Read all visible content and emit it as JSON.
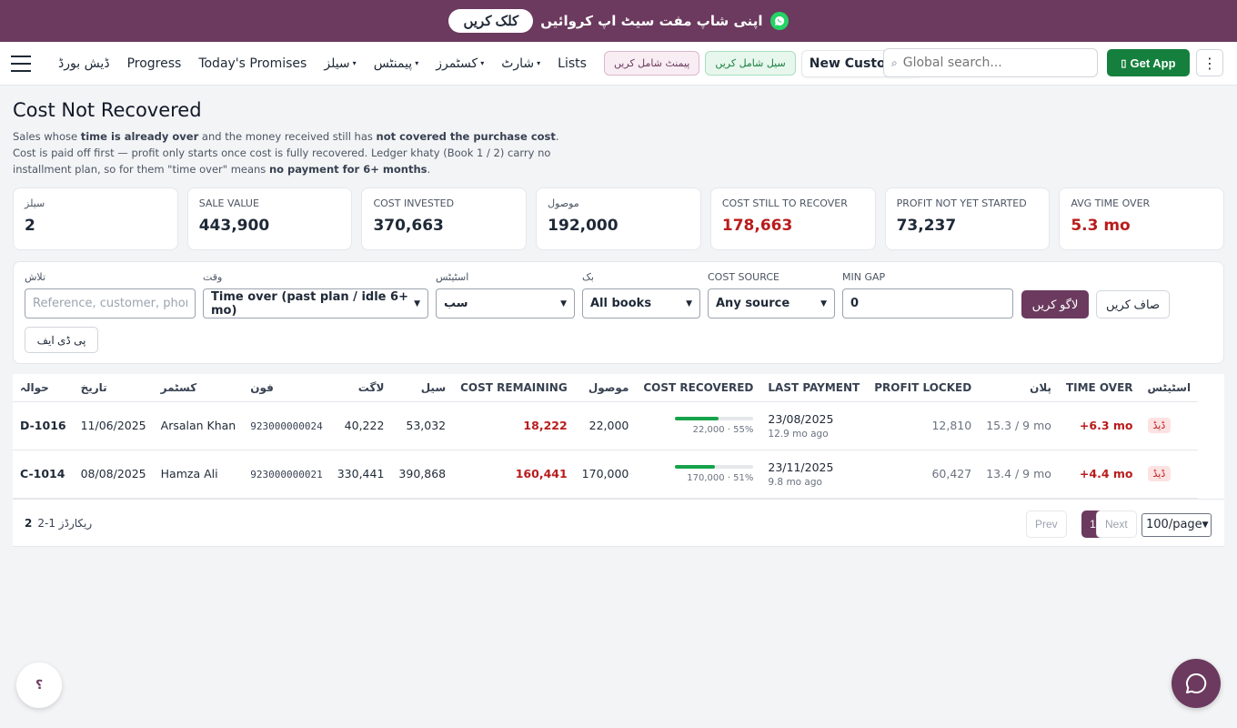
{
  "banner": {
    "message": "اپنی شاپ مفت سیٹ اپ کروائیں",
    "cta": "کلک کریں",
    "icon": "whatsapp-icon"
  },
  "nav": {
    "links": [
      {
        "label": "ڈیش بورڈ",
        "caret": false
      },
      {
        "label": "Progress",
        "caret": false
      },
      {
        "label": "Today's Promises",
        "caret": false
      },
      {
        "label": "سیلز",
        "caret": true
      },
      {
        "label": "پیمنٹس",
        "caret": true
      },
      {
        "label": "کسٹمرز",
        "caret": true
      },
      {
        "label": "شارٹ",
        "caret": true
      },
      {
        "label": "Lists",
        "caret": false
      }
    ],
    "add_payment": "پیمنٹ شامل کریں",
    "add_sale": "سیل شامل کریں",
    "new_customer": "New Customer",
    "search_placeholder": "Global search...",
    "get_app": "Get App"
  },
  "page": {
    "title": "Cost Not Recovered",
    "desc": [
      {
        "t": "Sales whose ",
        "b": false
      },
      {
        "t": "time is already over",
        "b": true
      },
      {
        "t": " and the money received still has ",
        "b": false
      },
      {
        "t": "not covered the purchase cost",
        "b": true
      },
      {
        "t": ". Cost is paid off first — profit only starts once cost is fully recovered. Ledger khaty (Book 1 / 2) carry no installment plan, so for them \"time over\" means ",
        "b": false
      },
      {
        "t": "no payment for 6+ months",
        "b": true
      },
      {
        "t": ".",
        "b": false
      }
    ]
  },
  "cards": [
    {
      "label": "سیلز",
      "value": "2",
      "red": false
    },
    {
      "label": "SALE VALUE",
      "value": "443,900",
      "red": false
    },
    {
      "label": "COST INVESTED",
      "value": "370,663",
      "red": false
    },
    {
      "label": "موصول",
      "value": "192,000",
      "red": false
    },
    {
      "label": "COST STILL TO RECOVER",
      "value": "178,663",
      "red": true
    },
    {
      "label": "PROFIT NOT YET STARTED",
      "value": "73,237",
      "red": false
    },
    {
      "label": "AVG TIME OVER",
      "value": "5.3 mo",
      "red": true
    }
  ],
  "filters": {
    "search_label": "تلاش",
    "search_placeholder": "Reference, customer, phone",
    "time_label": "وقت",
    "time_value": "Time over (past plan / idle 6+ mo)",
    "status_label": "اسٹیٹس",
    "status_value": "سب",
    "book_label": "بک",
    "book_value": "All books",
    "cost_source_label": "COST SOURCE",
    "cost_source_value": "Any source",
    "min_gap_label": "MIN GAP",
    "min_gap_value": "0",
    "apply": "لاگو کریں",
    "clear": "صاف کریں",
    "pdf": "پی ڈی ایف"
  },
  "table": {
    "headers": [
      "حوالہ",
      "تاریخ",
      "کسٹمر",
      "فون",
      "لاگت",
      "سیل",
      "COST REMAINING",
      "موصول",
      "COST RECOVERED",
      "LAST PAYMENT",
      "PROFIT LOCKED",
      "پلان",
      "TIME OVER",
      "اسٹیٹس"
    ],
    "rows": [
      {
        "ref": "D-1016",
        "date": "11/06/2025",
        "customer": "Arsalan Khan",
        "phone": "923000000024",
        "cost": "40,222",
        "sale": "53,032",
        "remaining": "18,222",
        "received": "22,000",
        "recovered_pct": 55,
        "recovered_label": "22,000 · 55%",
        "last_payment": "23/08/2025",
        "last_payment_ago": "12.9 mo ago",
        "profit_locked": "12,810",
        "plan": "15.3 / 9 mo",
        "time_over": "+6.3 mo",
        "status": "ڈیڈ"
      },
      {
        "ref": "C-1014",
        "date": "08/08/2025",
        "customer": "Hamza Ali",
        "phone": "923000000021",
        "cost": "330,441",
        "sale": "390,868",
        "remaining": "160,441",
        "received": "170,000",
        "recovered_pct": 51,
        "recovered_label": "170,000 · 51%",
        "last_payment": "23/11/2025",
        "last_payment_ago": "9.8 mo ago",
        "profit_locked": "60,427",
        "plan": "13.4 / 9 mo",
        "time_over": "+4.4 mo",
        "status": "ڈیڈ"
      }
    ]
  },
  "pager": {
    "records_label": "ریکارڈز 1-2",
    "total": "2",
    "prev": "Prev",
    "current": "1",
    "next": "Next",
    "per_page": "100/page"
  },
  "floating": {
    "help": "؟"
  },
  "colors": {
    "brand": "#6b3a5e",
    "green": "#15803d",
    "danger": "#b91c1c"
  }
}
